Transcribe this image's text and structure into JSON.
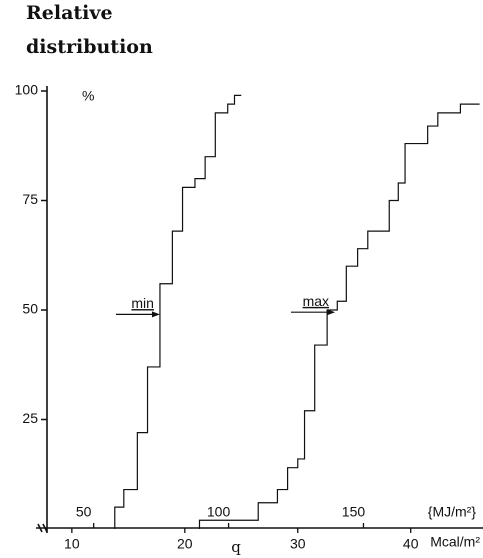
{
  "chart_data": {
    "type": "line",
    "step": "post",
    "title": [
      "Relative",
      "distribution"
    ],
    "ylabel": "%",
    "xlabel": "q",
    "x_unit": "Mcal/m²",
    "x2_unit": "{MJ/m²}",
    "xlim": [
      7.8,
      46.4
    ],
    "xticks": [
      10,
      20,
      30,
      40
    ],
    "x2lim": [
      32.7,
      194.3
    ],
    "x2ticks": [
      50,
      100,
      150
    ],
    "ylim": [
      0,
      100
    ],
    "yticks": [
      25,
      50,
      75,
      100
    ],
    "series": [
      {
        "name": "min",
        "color": "#111111",
        "x": [
          13.8,
          14.6,
          15.8,
          16.7,
          17.8,
          18.9,
          19.8,
          20.9,
          21.8,
          22.7,
          23.8,
          24.4,
          25.0
        ],
        "values": [
          5,
          9,
          22,
          37,
          56,
          68,
          78,
          80,
          85,
          95,
          97,
          99,
          99
        ]
      },
      {
        "name": "max",
        "color": "#111111",
        "x": [
          21.3,
          26.5,
          28.2,
          29.1,
          30.0,
          30.6,
          31.5,
          32.6,
          33.5,
          34.3,
          35.3,
          36.2,
          38.1,
          38.9,
          39.5,
          41.5,
          42.4,
          44.4,
          46.1
        ],
        "values": [
          2,
          6,
          9,
          14,
          16,
          27,
          42,
          50,
          52,
          60,
          64,
          68,
          75,
          79,
          88,
          92,
          95,
          97,
          97
        ]
      }
    ],
    "annotations": [
      {
        "text": "min",
        "x": 17.8,
        "y": 49
      },
      {
        "text": "max",
        "x": 33.3,
        "y": 49.5
      }
    ]
  }
}
